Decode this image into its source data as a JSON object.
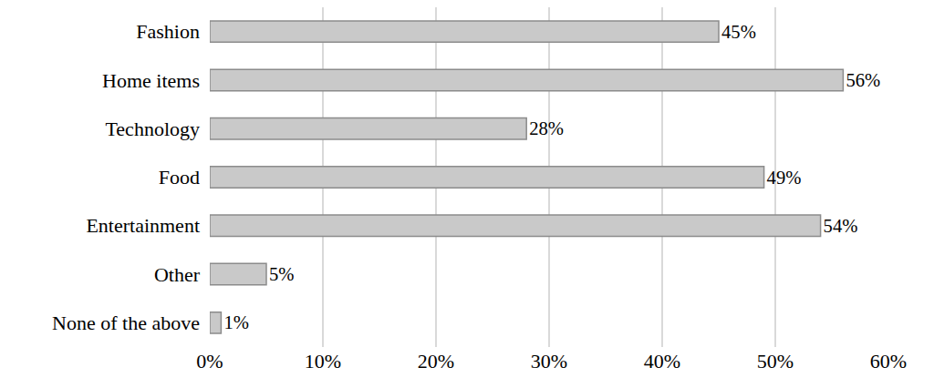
{
  "chart_data": {
    "type": "bar",
    "orientation": "horizontal",
    "categories": [
      "Fashion",
      "Home items",
      "Technology",
      "Food",
      "Entertainment",
      "Other",
      "None of the above"
    ],
    "values": [
      45,
      56,
      28,
      49,
      54,
      5,
      1
    ],
    "value_labels": [
      "45%",
      "56%",
      "28%",
      "49%",
      "54%",
      "5%",
      "1%"
    ],
    "data_labels": true,
    "color": "#c9c9c9",
    "xlim": [
      0,
      60
    ],
    "xticks": [
      {
        "value": 0,
        "label": "0%"
      },
      {
        "value": 10,
        "label": "10%"
      },
      {
        "value": 20,
        "label": "20%"
      },
      {
        "value": 30,
        "label": "30%"
      },
      {
        "value": 40,
        "label": "40%"
      },
      {
        "value": 50,
        "label": "50%"
      },
      {
        "value": 60,
        "label": "60%"
      }
    ],
    "grid": true
  }
}
